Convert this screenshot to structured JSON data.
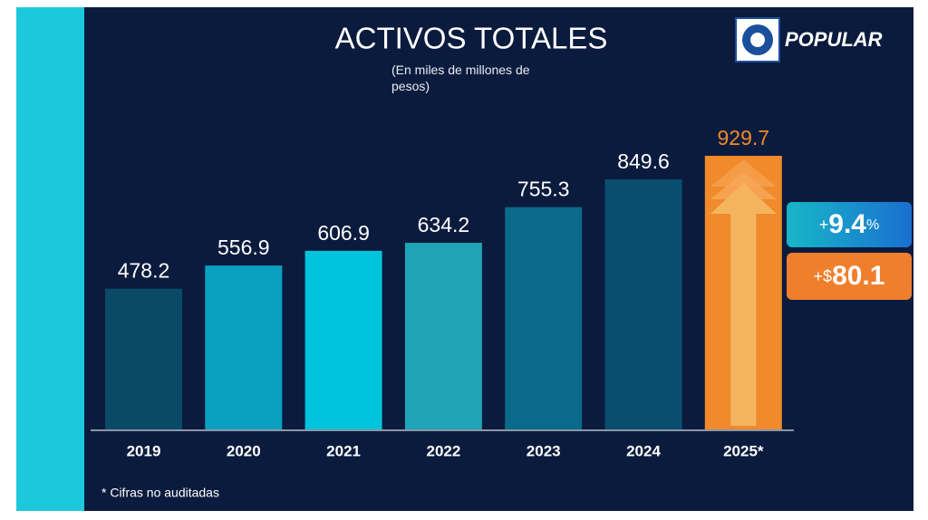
{
  "chart_data": {
    "type": "bar",
    "title": "ACTIVOS TOTALES",
    "subtitle": "(En miles de millones de pesos)",
    "logo": "POPULAR",
    "categories": [
      "2019",
      "2020",
      "2021",
      "2022",
      "2023",
      "2024",
      "2025*"
    ],
    "values": [
      478.2,
      556.9,
      606.9,
      634.2,
      755.3,
      849.6,
      929.7
    ],
    "colors": [
      "#0b4a66",
      "#0aa0c0",
      "#00c4dc",
      "#1fa3b5",
      "#0a6a8a",
      "#0a4e6e",
      "#f08a2a"
    ],
    "label_colors": [
      "#ffffff",
      "#ffffff",
      "#ffffff",
      "#ffffff",
      "#ffffff",
      "#ffffff",
      "#f08a2a"
    ],
    "badges": [
      {
        "prefix": "+",
        "value": "9.4",
        "suffix": "%"
      },
      {
        "prefix": "+$",
        "value": "80.1"
      }
    ],
    "footnote": "* Cifras no auditadas"
  }
}
